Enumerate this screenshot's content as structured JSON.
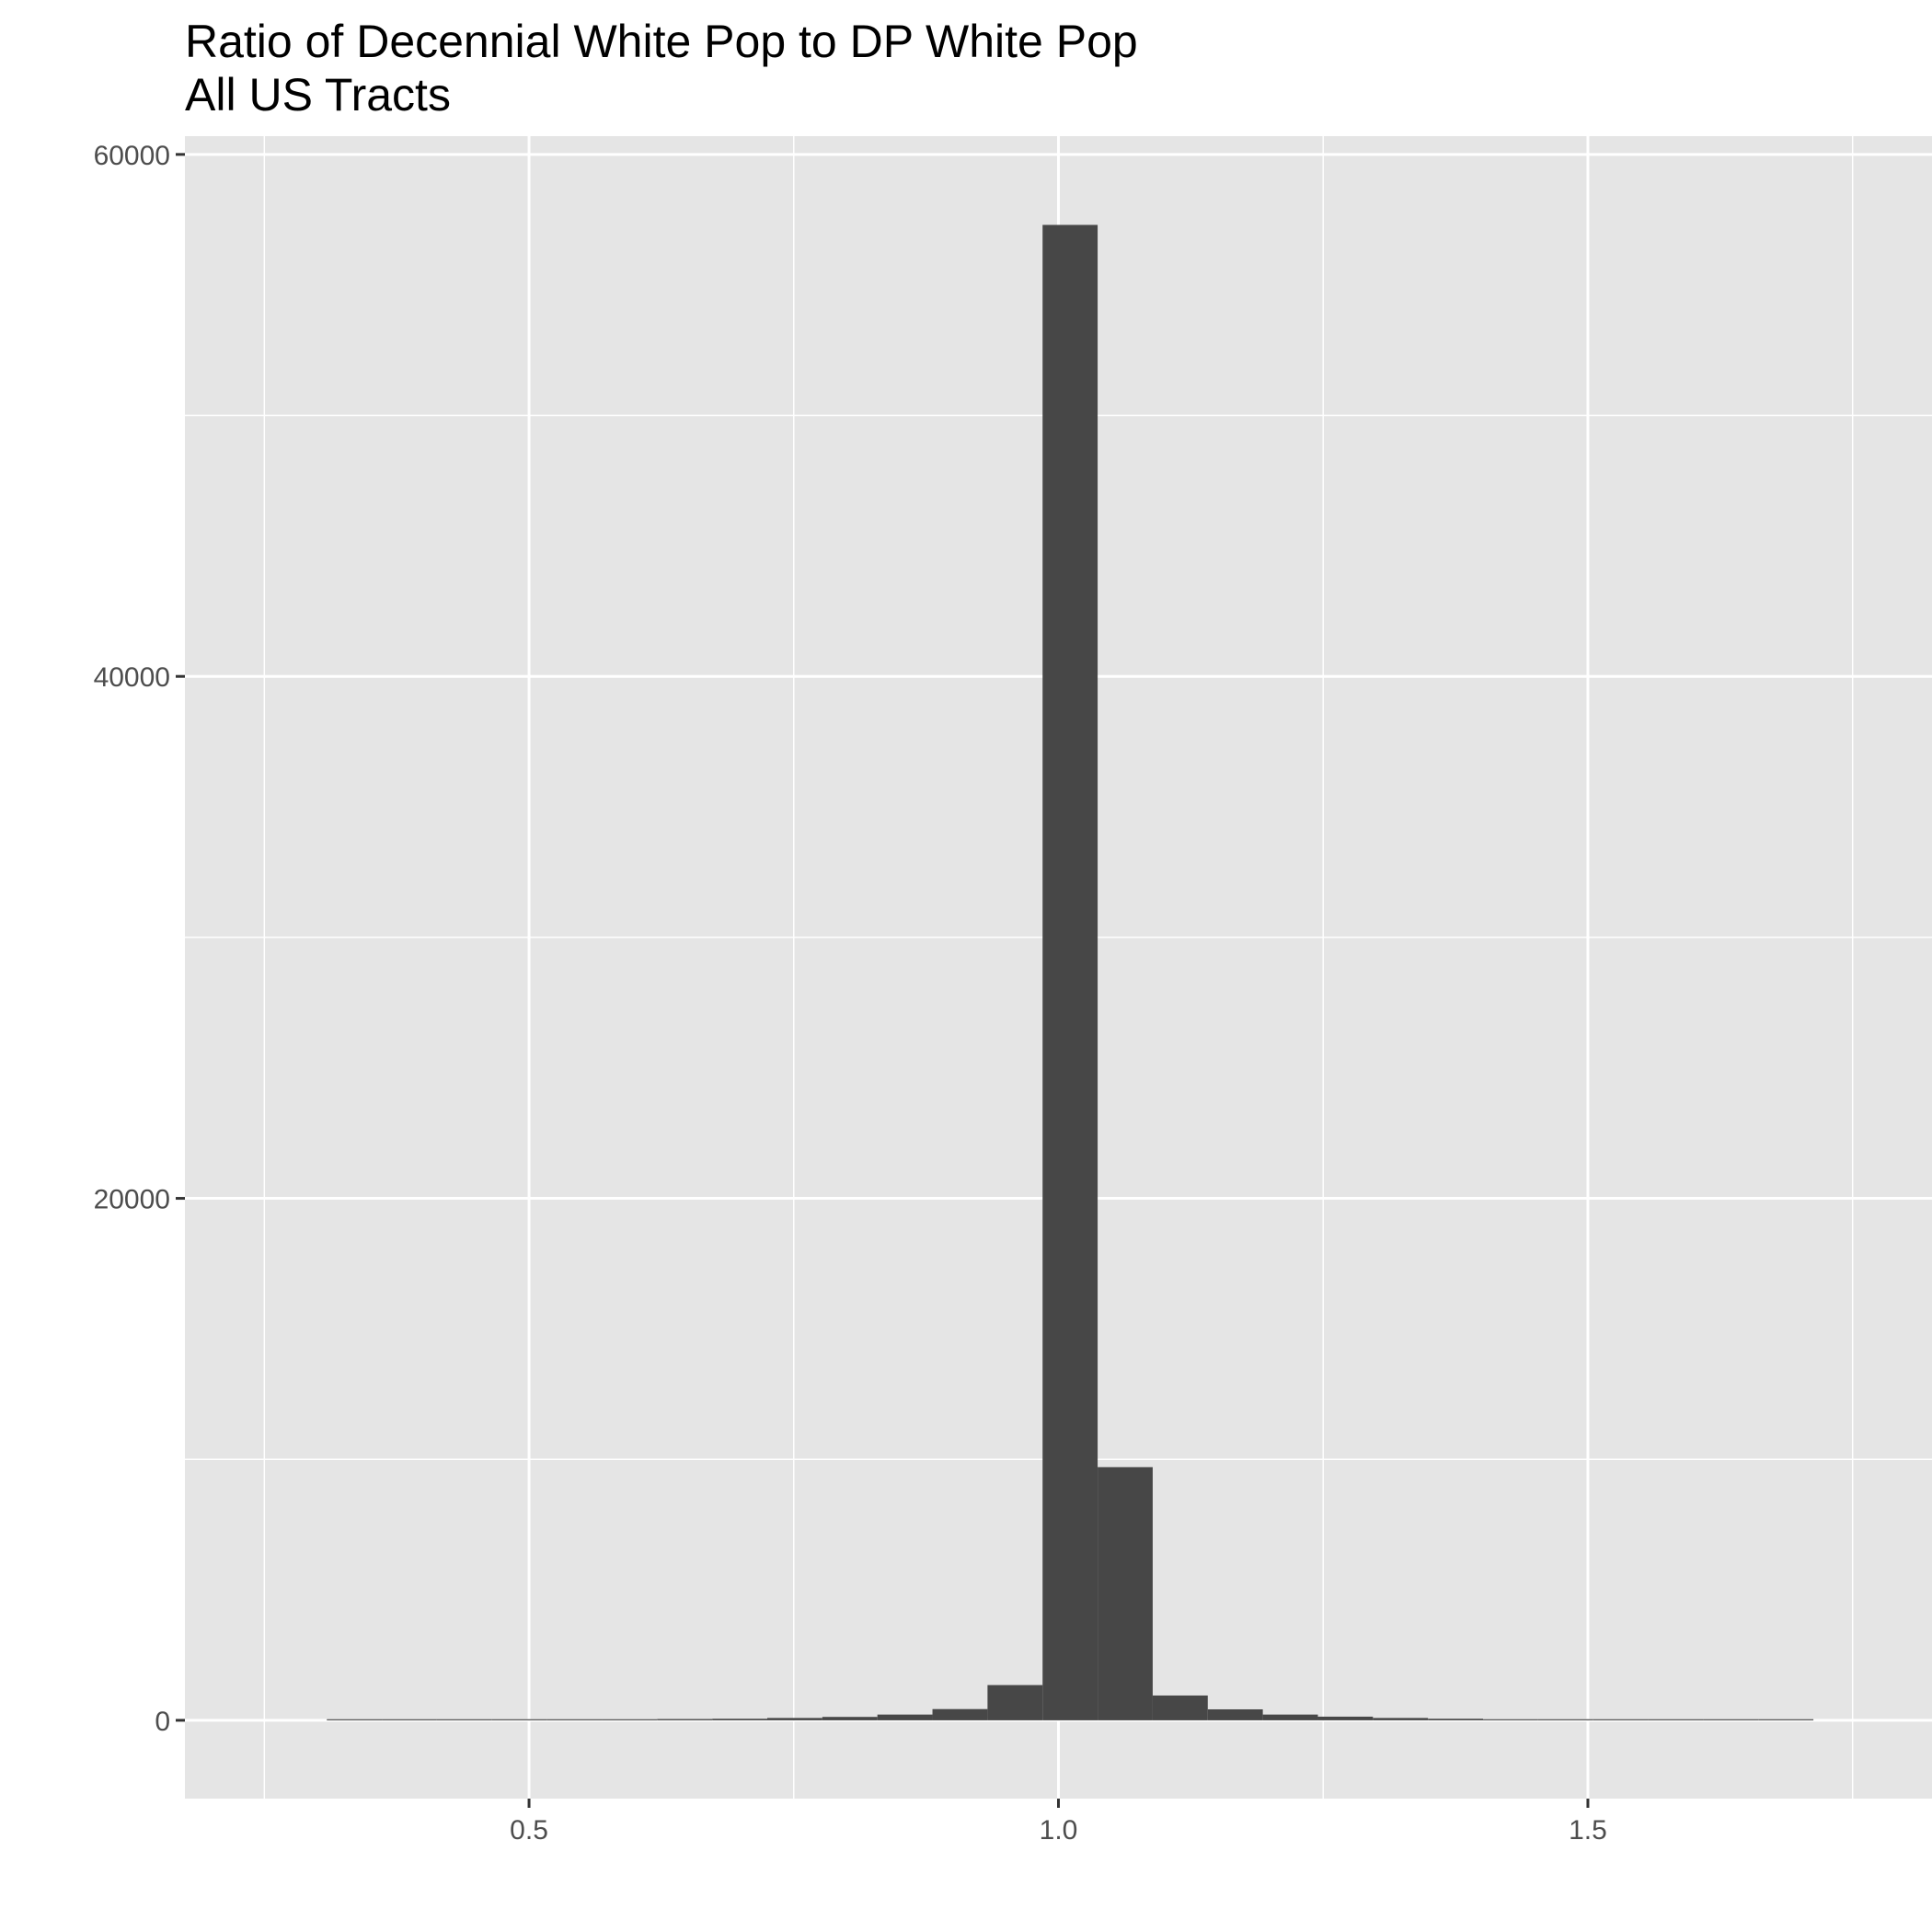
{
  "chart_data": {
    "type": "bar",
    "title": "Ratio of Decennial White Pop to DP White Pop",
    "subtitle": "All US Tracts",
    "xlabel": "",
    "ylabel": "",
    "xlim": [
      0.175,
      1.825
    ],
    "ylim": [
      -3000,
      60700
    ],
    "x_ticks": [
      "0.5",
      "1.0",
      "1.5"
    ],
    "y_ticks": [
      "0",
      "20000",
      "40000",
      "60000"
    ],
    "grid": true,
    "panel_background": "#e5e5e5",
    "bar_color": "#474747",
    "bin_width": 0.052,
    "bins": [
      {
        "x": 0.335,
        "count": 15
      },
      {
        "x": 0.387,
        "count": 5
      },
      {
        "x": 0.439,
        "count": 15
      },
      {
        "x": 0.491,
        "count": 20
      },
      {
        "x": 0.543,
        "count": 25
      },
      {
        "x": 0.595,
        "count": 40
      },
      {
        "x": 0.647,
        "count": 50
      },
      {
        "x": 0.699,
        "count": 60
      },
      {
        "x": 0.751,
        "count": 90
      },
      {
        "x": 0.803,
        "count": 130
      },
      {
        "x": 0.855,
        "count": 220
      },
      {
        "x": 0.907,
        "count": 430
      },
      {
        "x": 0.959,
        "count": 1350
      },
      {
        "x": 1.011,
        "count": 57300
      },
      {
        "x": 1.063,
        "count": 9700
      },
      {
        "x": 1.115,
        "count": 950
      },
      {
        "x": 1.167,
        "count": 420
      },
      {
        "x": 1.219,
        "count": 220
      },
      {
        "x": 1.271,
        "count": 140
      },
      {
        "x": 1.323,
        "count": 90
      },
      {
        "x": 1.375,
        "count": 60
      },
      {
        "x": 1.427,
        "count": 40
      },
      {
        "x": 1.479,
        "count": 30
      },
      {
        "x": 1.531,
        "count": 20
      },
      {
        "x": 1.583,
        "count": 25
      },
      {
        "x": 1.635,
        "count": 10
      },
      {
        "x": 1.687,
        "count": 10
      }
    ]
  }
}
